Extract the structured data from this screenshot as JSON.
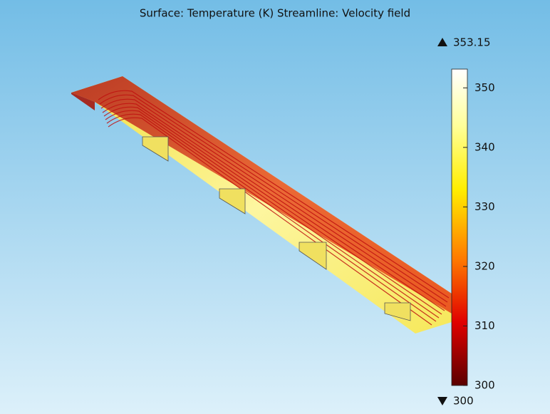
{
  "title": "Surface: Temperature (K)  Streamline: Velocity field",
  "colorbar": {
    "max": 353.15,
    "min": 300,
    "ticks": [
      300,
      310,
      320,
      330,
      340,
      350
    ]
  }
}
